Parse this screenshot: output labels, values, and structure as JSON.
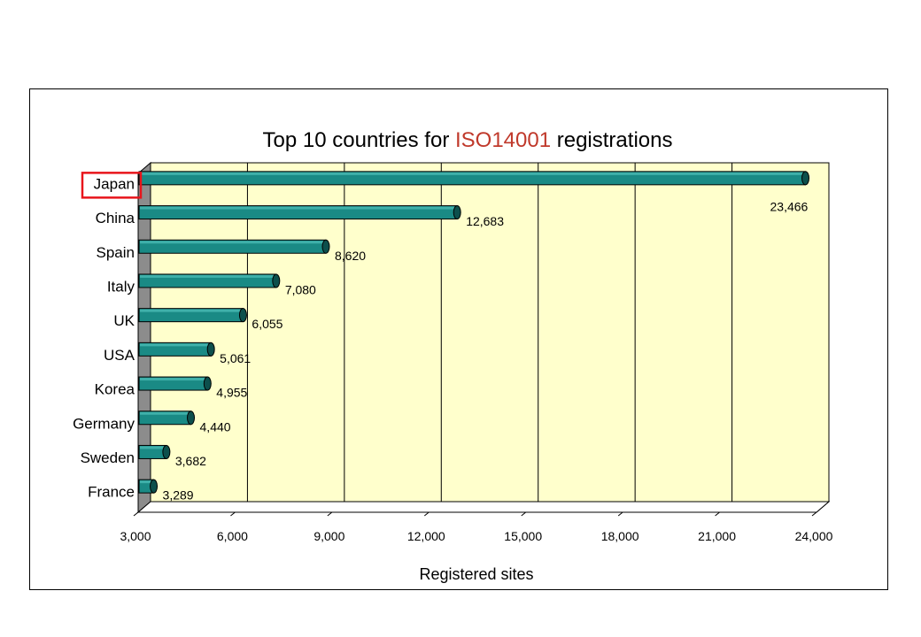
{
  "chart_data": {
    "type": "bar",
    "orientation": "horizontal",
    "title_parts": [
      {
        "text": "Top 10 countries for ",
        "highlight": false
      },
      {
        "text": "ISO14001",
        "highlight": true
      },
      {
        "text": " registrations",
        "highlight": false
      }
    ],
    "categories": [
      "Japan",
      "China",
      "Spain",
      "Italy",
      "UK",
      "USA",
      "Korea",
      "Germany",
      "Sweden",
      "France"
    ],
    "values": [
      23466,
      12683,
      8620,
      7080,
      6055,
      5061,
      4955,
      4440,
      3682,
      3289
    ],
    "value_labels": [
      "23,466",
      "12,683",
      "8,620",
      "7,080",
      "6,055",
      "5,061",
      "4,955",
      "4,440",
      "3,682",
      "3,289"
    ],
    "xlim": [
      3000,
      24000
    ],
    "ticks": [
      3000,
      6000,
      9000,
      12000,
      15000,
      18000,
      21000,
      24000
    ],
    "tick_labels": [
      "3,000",
      "6,000",
      "9,000",
      "12,000",
      "15,000",
      "18,000",
      "21,000",
      "24,000"
    ],
    "xlabel": "Registered sites",
    "ylabel": "",
    "highlighted_category": "Japan",
    "grid": true,
    "colors": {
      "bar": "#1a8a85",
      "bar_top": "#3fb0aa",
      "bar_end": "#0d4f4c",
      "plot_bg": "#ffffcc",
      "side_wall": "#8c8c8c",
      "highlight": "#e8151b",
      "title_highlight": "#c0392b"
    }
  }
}
